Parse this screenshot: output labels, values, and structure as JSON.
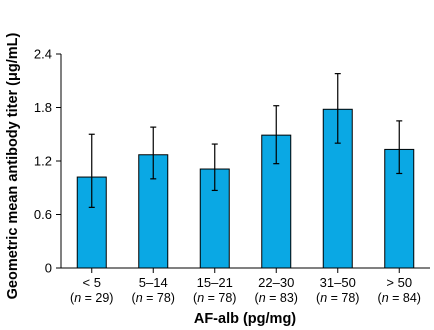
{
  "chart_data": {
    "type": "bar",
    "categories": [
      "< 5",
      "5–14",
      "15–21",
      "22–30",
      "31–50",
      "> 50"
    ],
    "n_labels": [
      [
        "(",
        "n",
        " = 29)"
      ],
      [
        "(",
        "n",
        " = 78)"
      ],
      [
        "(",
        "n",
        " = 78)"
      ],
      [
        "(",
        "n",
        " = 83)"
      ],
      [
        "(",
        "n",
        " = 78)"
      ],
      [
        "(",
        "n",
        " = 84)"
      ]
    ],
    "values": [
      1.02,
      1.27,
      1.11,
      1.49,
      1.78,
      1.33
    ],
    "error_low": [
      0.68,
      1.0,
      0.87,
      1.17,
      1.4,
      1.06
    ],
    "error_high": [
      1.5,
      1.58,
      1.39,
      1.82,
      2.18,
      1.65
    ],
    "ylabel": "Geometric mean antibody titer (μg/mL)",
    "xlabel": "AF-alb (pg/mg)",
    "yticks": [
      "0",
      "0.6",
      "1.2",
      "1.8",
      "2.4"
    ],
    "ylim": [
      0,
      2.4
    ],
    "bar_color": "#0aa8e4",
    "grid": false,
    "legend": "none"
  }
}
